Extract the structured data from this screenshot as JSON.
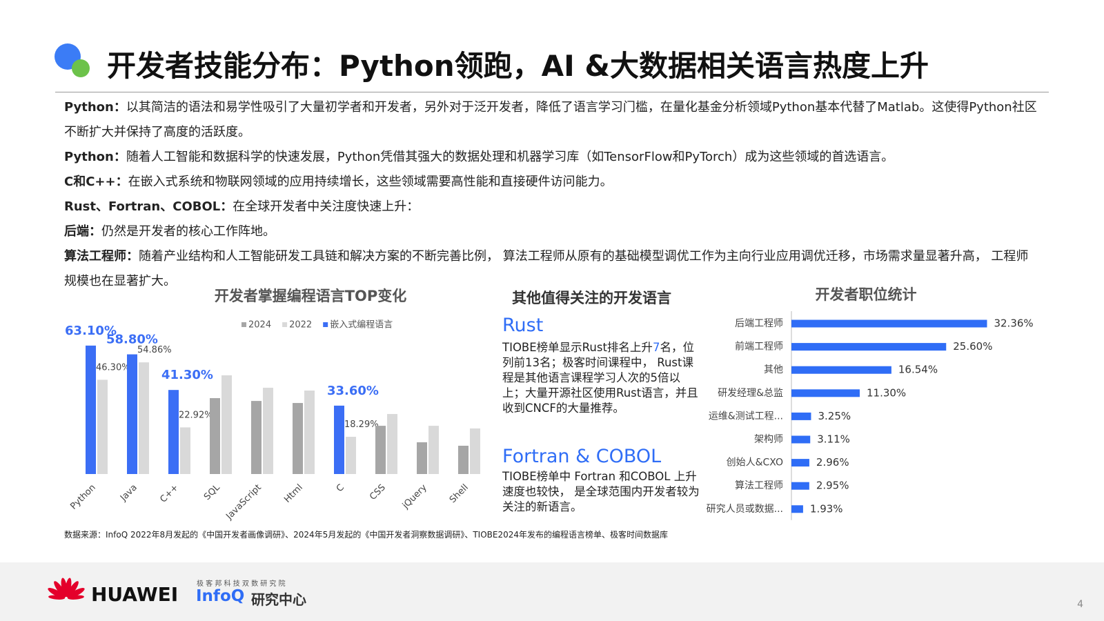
{
  "header": {
    "title": "开发者技能分布：Python领跑，AI &大数据相关语言热度上升"
  },
  "paragraphs": [
    {
      "lead": "Python：",
      "text": "以其简洁的语法和易学性吸引了大量初学者和开发者，另外对于泛开发者，降低了语言学习门槛，在量化基金分析领域Python基本代替了Matlab。这使得Python社区不断扩大并保持了高度的活跃度。"
    },
    {
      "lead": "Python：",
      "text": "随着人工智能和数据科学的快速发展，Python凭借其强大的数据处理和机器学习库（如TensorFlow和PyTorch）成为这些领域的首选语言。"
    },
    {
      "lead": "C和C++：",
      "text": "在嵌入式系统和物联网领域的应用持续增长，这些领域需要高性能和直接硬件访问能力。"
    },
    {
      "lead": "Rust、Fortran、COBOL：",
      "text": "在全球开发者中关注度快速上升："
    },
    {
      "lead": "后端：",
      "text": "仍然是开发者的核心工作阵地。"
    },
    {
      "lead": "算法工程师：",
      "text": "随着产业结构和人工智能研发工具链和解决方案的不断完善比例， 算法工程师从原有的基础模型调优工作为主向行业应用调优迁移，市场需求量显著升高， 工程师规模也在显著扩大。"
    }
  ],
  "chart_data": [
    {
      "type": "bar",
      "title": "开发者掌握编程语言TOP变化",
      "categories": [
        "Python",
        "Java",
        "C++",
        "SQL",
        "JavaScript",
        "Html",
        "C",
        "CSS",
        "jQuery",
        "Shell"
      ],
      "series": [
        {
          "name": "2024",
          "color": "#a6a6a6",
          "values": [
            null,
            null,
            null,
            37.3,
            35.9,
            34.9,
            null,
            23.7,
            15.6,
            13.9
          ]
        },
        {
          "name": "2022",
          "color": "#d9d9d9",
          "values": [
            46.3,
            54.86,
            22.92,
            48.5,
            42.4,
            41,
            18.29,
            29.5,
            23.7,
            22.4
          ],
          "value_labels": [
            "46.30%",
            "54.86%",
            "22.92%",
            null,
            null,
            null,
            "18.29%",
            null,
            null,
            null
          ]
        },
        {
          "name": "嵌入式编程语言",
          "color": "#3b6ef5",
          "values": [
            63.1,
            58.8,
            41.3,
            null,
            null,
            null,
            33.6,
            null,
            null,
            null
          ],
          "value_labels": [
            "63.10%",
            "58.80%",
            "41.30%",
            null,
            null,
            null,
            "33.60%",
            null,
            null,
            null
          ]
        }
      ]
    },
    {
      "type": "barh",
      "title": "开发者职位统计",
      "color": "#2f6df6",
      "categories": [
        "后端工程师",
        "前端工程师",
        "其他",
        "研发经理&总监",
        "运维&测试工程...",
        "架构师",
        "创始人&CXO",
        "算法工程师",
        "研究人员或数据..."
      ],
      "values": [
        32.36,
        25.6,
        16.54,
        11.3,
        3.25,
        3.11,
        2.96,
        2.95,
        1.93
      ],
      "value_labels": [
        "32.36%",
        "25.60%",
        "16.54%",
        "11.30%",
        "3.25%",
        "3.11%",
        "2.96%",
        "2.95%",
        "1.93%"
      ]
    }
  ],
  "other_languages": {
    "title": "其他值得关注的开发语言",
    "rust": {
      "heading": "Rust",
      "text_before": "TIOBE榜单显示Rust排名上升",
      "highlight": "7",
      "text_after": "名，位列前13名；极客时间课程中， Rust课程是其他语言课程学习人次的5倍以上；大量开源社区使用Rust语言，并且收到CNCF的大量推荐。"
    },
    "fortran": {
      "heading": "Fortran & COBOL",
      "text": "TIOBE榜单中 Fortran 和COBOL 上升速度也较快， 是全球范围内开发者较为关注的新语言。"
    }
  },
  "source": "数据来源：InfoQ 2022年8月发起的《中国开发者画像调研》、2024年5月发起的《中国开发者洞察数据调研》、TIOBE2024年发布的编程语言榜单、极客时间数据库",
  "footer": {
    "brand": "HUAWEI",
    "institute": "极 客 邦 科 技 双 数 研 究 院",
    "infoq": "InfoQ",
    "center": "研究中心"
  },
  "page_number": "4"
}
